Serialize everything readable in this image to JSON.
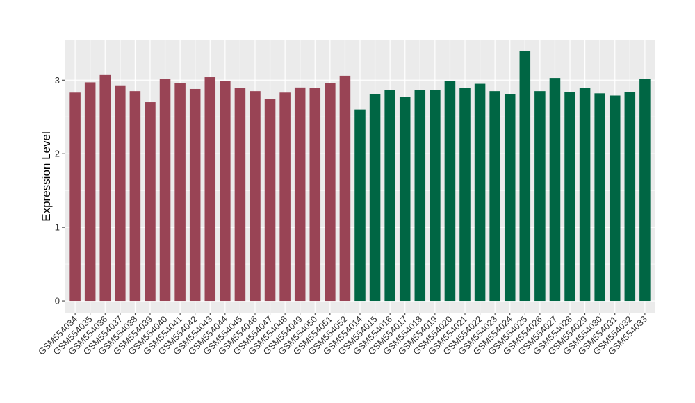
{
  "chart_data": {
    "type": "bar",
    "ylabel": "Expression Level",
    "xlabel": "",
    "title": "",
    "ylim": [
      -0.16,
      3.55
    ],
    "yticks": [
      0,
      1,
      2,
      3
    ],
    "grid": true,
    "panel_background": "#EBEBEB",
    "categories": [
      "GSM554034",
      "GSM554035",
      "GSM554036",
      "GSM554037",
      "GSM554038",
      "GSM554039",
      "GSM554040",
      "GSM554041",
      "GSM554042",
      "GSM554043",
      "GSM554044",
      "GSM554045",
      "GSM554046",
      "GSM554047",
      "GSM554048",
      "GSM554049",
      "GSM554050",
      "GSM554051",
      "GSM554052",
      "GSM554014",
      "GSM554015",
      "GSM554016",
      "GSM554017",
      "GSM554018",
      "GSM554019",
      "GSM554020",
      "GSM554021",
      "GSM554022",
      "GSM554023",
      "GSM554024",
      "GSM554025",
      "GSM554026",
      "GSM554027",
      "GSM554028",
      "GSM554029",
      "GSM554030",
      "GSM554031",
      "GSM554032",
      "GSM554033"
    ],
    "values": [
      2.83,
      2.97,
      3.07,
      2.92,
      2.85,
      2.7,
      3.02,
      2.96,
      2.88,
      3.04,
      2.99,
      2.89,
      2.85,
      2.74,
      2.83,
      2.9,
      2.89,
      2.96,
      3.06,
      2.6,
      2.81,
      2.87,
      2.77,
      2.87,
      2.87,
      2.99,
      2.89,
      2.95,
      2.85,
      2.81,
      3.39,
      2.85,
      3.03,
      2.84,
      2.89,
      2.82,
      2.79,
      2.84,
      3.02
    ],
    "group_colors": [
      "#994455",
      "#006644"
    ],
    "groups": [
      0,
      0,
      0,
      0,
      0,
      0,
      0,
      0,
      0,
      0,
      0,
      0,
      0,
      0,
      0,
      0,
      0,
      0,
      0,
      1,
      1,
      1,
      1,
      1,
      1,
      1,
      1,
      1,
      1,
      1,
      1,
      1,
      1,
      1,
      1,
      1,
      1,
      1,
      1
    ]
  }
}
